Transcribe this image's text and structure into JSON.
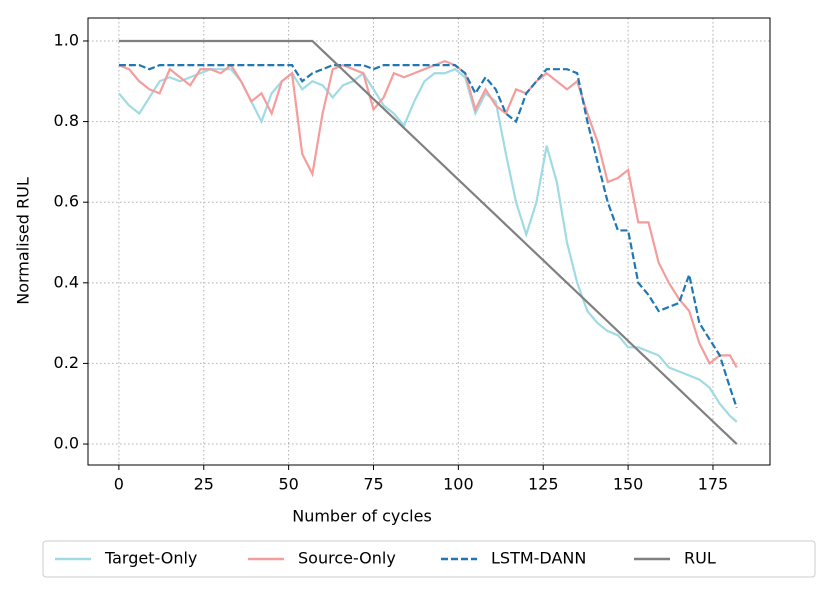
{
  "chart_data": {
    "type": "line",
    "xlabel": "Number of cycles",
    "ylabel": "Normalised RUL",
    "x": [
      0,
      3,
      6,
      9,
      12,
      15,
      18,
      21,
      24,
      27,
      30,
      33,
      36,
      39,
      42,
      45,
      48,
      51,
      54,
      57,
      60,
      63,
      66,
      69,
      72,
      75,
      78,
      81,
      84,
      87,
      90,
      93,
      96,
      99,
      102,
      105,
      108,
      111,
      114,
      117,
      120,
      123,
      126,
      129,
      132,
      135,
      138,
      141,
      144,
      147,
      150,
      153,
      156,
      159,
      162,
      165,
      168,
      171,
      174,
      177,
      180,
      182
    ],
    "series": [
      {
        "name": "Target-Only",
        "color": "#a0dbe4",
        "dashed": false,
        "values": [
          0.87,
          0.84,
          0.82,
          0.86,
          0.9,
          0.91,
          0.9,
          0.91,
          0.92,
          0.93,
          0.93,
          0.93,
          0.9,
          0.85,
          0.8,
          0.87,
          0.9,
          0.92,
          0.88,
          0.9,
          0.89,
          0.86,
          0.89,
          0.9,
          0.92,
          0.88,
          0.84,
          0.82,
          0.79,
          0.85,
          0.9,
          0.92,
          0.92,
          0.93,
          0.91,
          0.82,
          0.87,
          0.85,
          0.72,
          0.6,
          0.52,
          0.6,
          0.74,
          0.65,
          0.5,
          0.4,
          0.33,
          0.3,
          0.28,
          0.27,
          0.24,
          0.24,
          0.23,
          0.22,
          0.19,
          0.18,
          0.17,
          0.16,
          0.14,
          0.1,
          0.07,
          0.055
        ]
      },
      {
        "name": "Source-Only",
        "color": "#f59c9c",
        "dashed": false,
        "values": [
          0.94,
          0.93,
          0.9,
          0.88,
          0.87,
          0.93,
          0.91,
          0.89,
          0.93,
          0.93,
          0.92,
          0.94,
          0.9,
          0.85,
          0.87,
          0.82,
          0.9,
          0.92,
          0.72,
          0.67,
          0.82,
          0.93,
          0.94,
          0.93,
          0.92,
          0.83,
          0.86,
          0.92,
          0.91,
          0.92,
          0.93,
          0.94,
          0.95,
          0.94,
          0.92,
          0.83,
          0.88,
          0.84,
          0.82,
          0.88,
          0.87,
          0.9,
          0.92,
          0.9,
          0.88,
          0.9,
          0.82,
          0.75,
          0.65,
          0.66,
          0.68,
          0.55,
          0.55,
          0.45,
          0.4,
          0.36,
          0.33,
          0.25,
          0.2,
          0.22,
          0.22,
          0.19
        ]
      },
      {
        "name": "LSTM-DANN",
        "color": "#1f77b4",
        "dashed": true,
        "values": [
          0.94,
          0.94,
          0.94,
          0.93,
          0.94,
          0.94,
          0.94,
          0.94,
          0.94,
          0.94,
          0.94,
          0.94,
          0.94,
          0.94,
          0.94,
          0.94,
          0.94,
          0.94,
          0.9,
          0.92,
          0.93,
          0.94,
          0.94,
          0.94,
          0.94,
          0.93,
          0.94,
          0.94,
          0.94,
          0.94,
          0.94,
          0.94,
          0.94,
          0.94,
          0.92,
          0.87,
          0.91,
          0.88,
          0.82,
          0.8,
          0.87,
          0.9,
          0.93,
          0.93,
          0.93,
          0.92,
          0.8,
          0.7,
          0.6,
          0.53,
          0.53,
          0.4,
          0.37,
          0.33,
          0.34,
          0.35,
          0.42,
          0.3,
          0.26,
          0.22,
          0.14,
          0.09
        ]
      },
      {
        "name": "RUL",
        "color": "#808080",
        "dashed": false,
        "values": [
          1,
          1,
          1,
          1,
          1,
          1,
          1,
          1,
          1,
          1,
          1,
          1,
          1,
          1,
          1,
          1,
          1,
          1,
          1,
          1,
          0.976,
          0.952,
          0.928,
          0.904,
          0.88,
          0.856,
          0.832,
          0.808,
          0.784,
          0.76,
          0.736,
          0.712,
          0.688,
          0.664,
          0.64,
          0.616,
          0.592,
          0.568,
          0.544,
          0.52,
          0.496,
          0.472,
          0.448,
          0.424,
          0.4,
          0.376,
          0.352,
          0.328,
          0.304,
          0.28,
          0.256,
          0.232,
          0.208,
          0.184,
          0.16,
          0.136,
          0.112,
          0.088,
          0.064,
          0.04,
          0.016,
          0
        ]
      }
    ],
    "xlim": [
      -9.1,
      191.8
    ],
    "ylim": [
      -0.052,
      1.057
    ],
    "xticks": [
      0,
      25,
      50,
      75,
      100,
      125,
      150,
      175
    ],
    "yticks": [
      {
        "value": 0,
        "label": "0.0"
      },
      0.2,
      0.4,
      0.6,
      0.8,
      {
        "value": 1,
        "label": "1.0"
      }
    ],
    "grid": true,
    "legend": "bottom"
  }
}
